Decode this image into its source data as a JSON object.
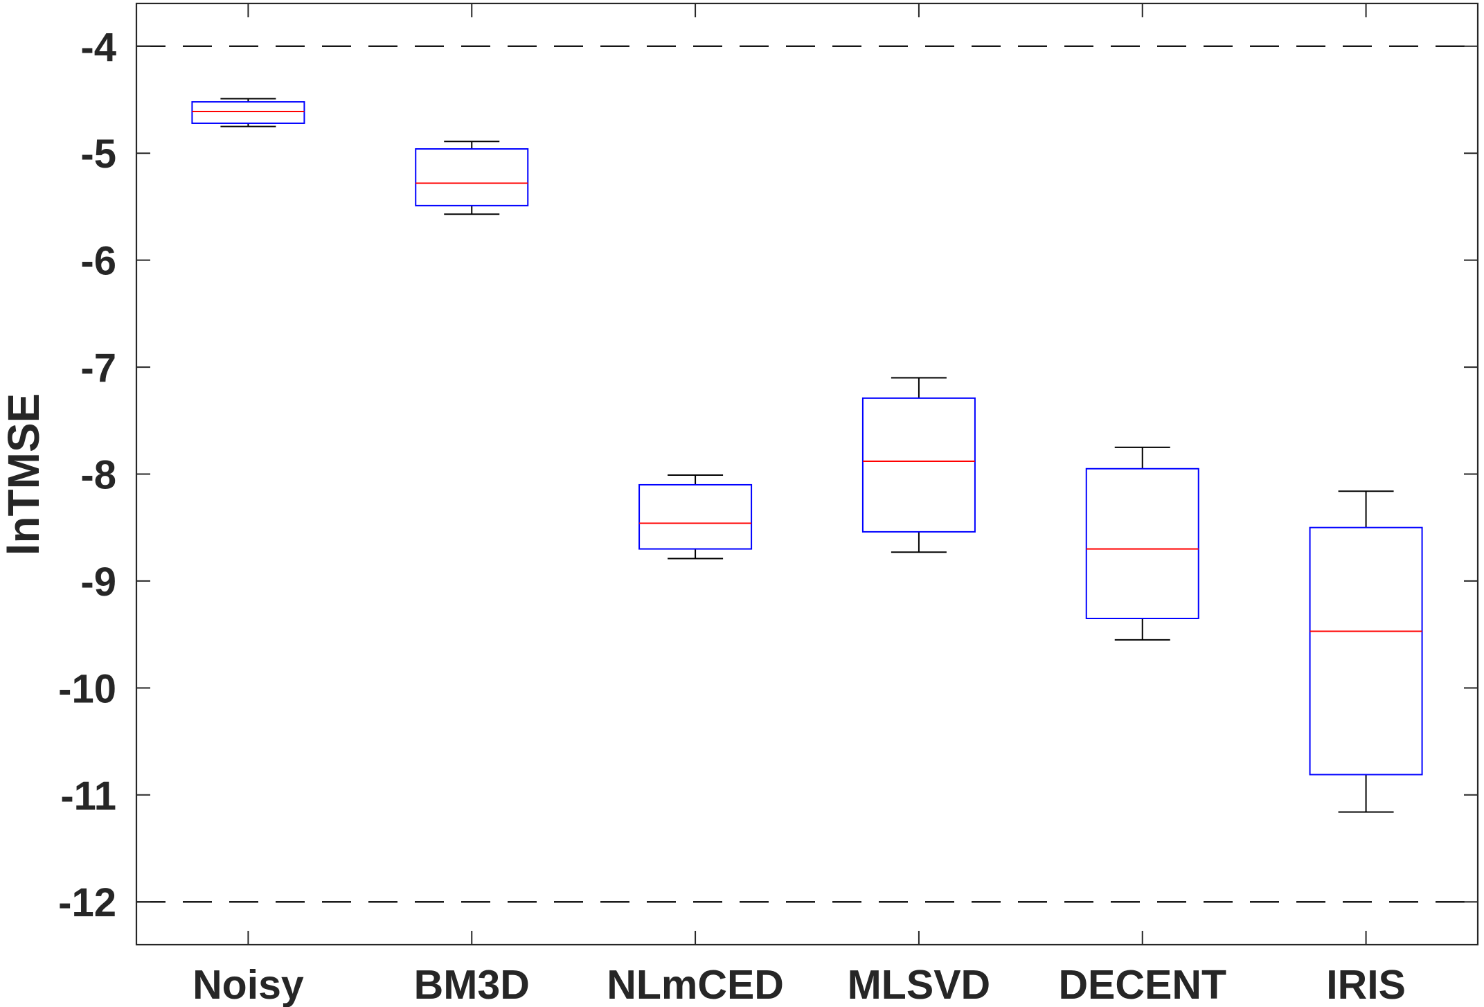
{
  "chart_data": {
    "type": "boxplot",
    "title": "",
    "xlabel": "",
    "ylabel": "lnTMSE",
    "categories": [
      "Noisy",
      "BM3D",
      "NLmCED",
      "MLSVD",
      "DECENT",
      "IRIS"
    ],
    "ylim": [
      -12.4,
      -3.6
    ],
    "yticks": [
      -4,
      -5,
      -6,
      -7,
      -8,
      -9,
      -10,
      -11,
      -12
    ],
    "grid": false,
    "reference_lines": [
      {
        "y": -4,
        "style": "dashed",
        "color": "#000000"
      },
      {
        "y": -12,
        "style": "dashed",
        "color": "#000000"
      }
    ],
    "series": [
      {
        "name": "Noisy",
        "whisker_high": -4.49,
        "q3": -4.52,
        "median": -4.61,
        "q1": -4.72,
        "whisker_low": -4.75
      },
      {
        "name": "BM3D",
        "whisker_high": -4.89,
        "q3": -4.96,
        "median": -5.28,
        "q1": -5.49,
        "whisker_low": -5.57
      },
      {
        "name": "NLmCED",
        "whisker_high": -8.01,
        "q3": -8.1,
        "median": -8.46,
        "q1": -8.7,
        "whisker_low": -8.79
      },
      {
        "name": "MLSVD",
        "whisker_high": -7.1,
        "q3": -7.29,
        "median": -7.88,
        "q1": -8.54,
        "whisker_low": -8.73
      },
      {
        "name": "DECENT",
        "whisker_high": -7.75,
        "q3": -7.95,
        "median": -8.7,
        "q1": -9.35,
        "whisker_low": -9.55
      },
      {
        "name": "IRIS",
        "whisker_high": -8.16,
        "q3": -8.5,
        "median": -9.47,
        "q1": -10.81,
        "whisker_low": -11.16
      }
    ],
    "colors": {
      "box": "#0000ff",
      "median": "#ff0000",
      "whisker": "#000000",
      "axis": "#262626",
      "reference": "#000000"
    }
  }
}
